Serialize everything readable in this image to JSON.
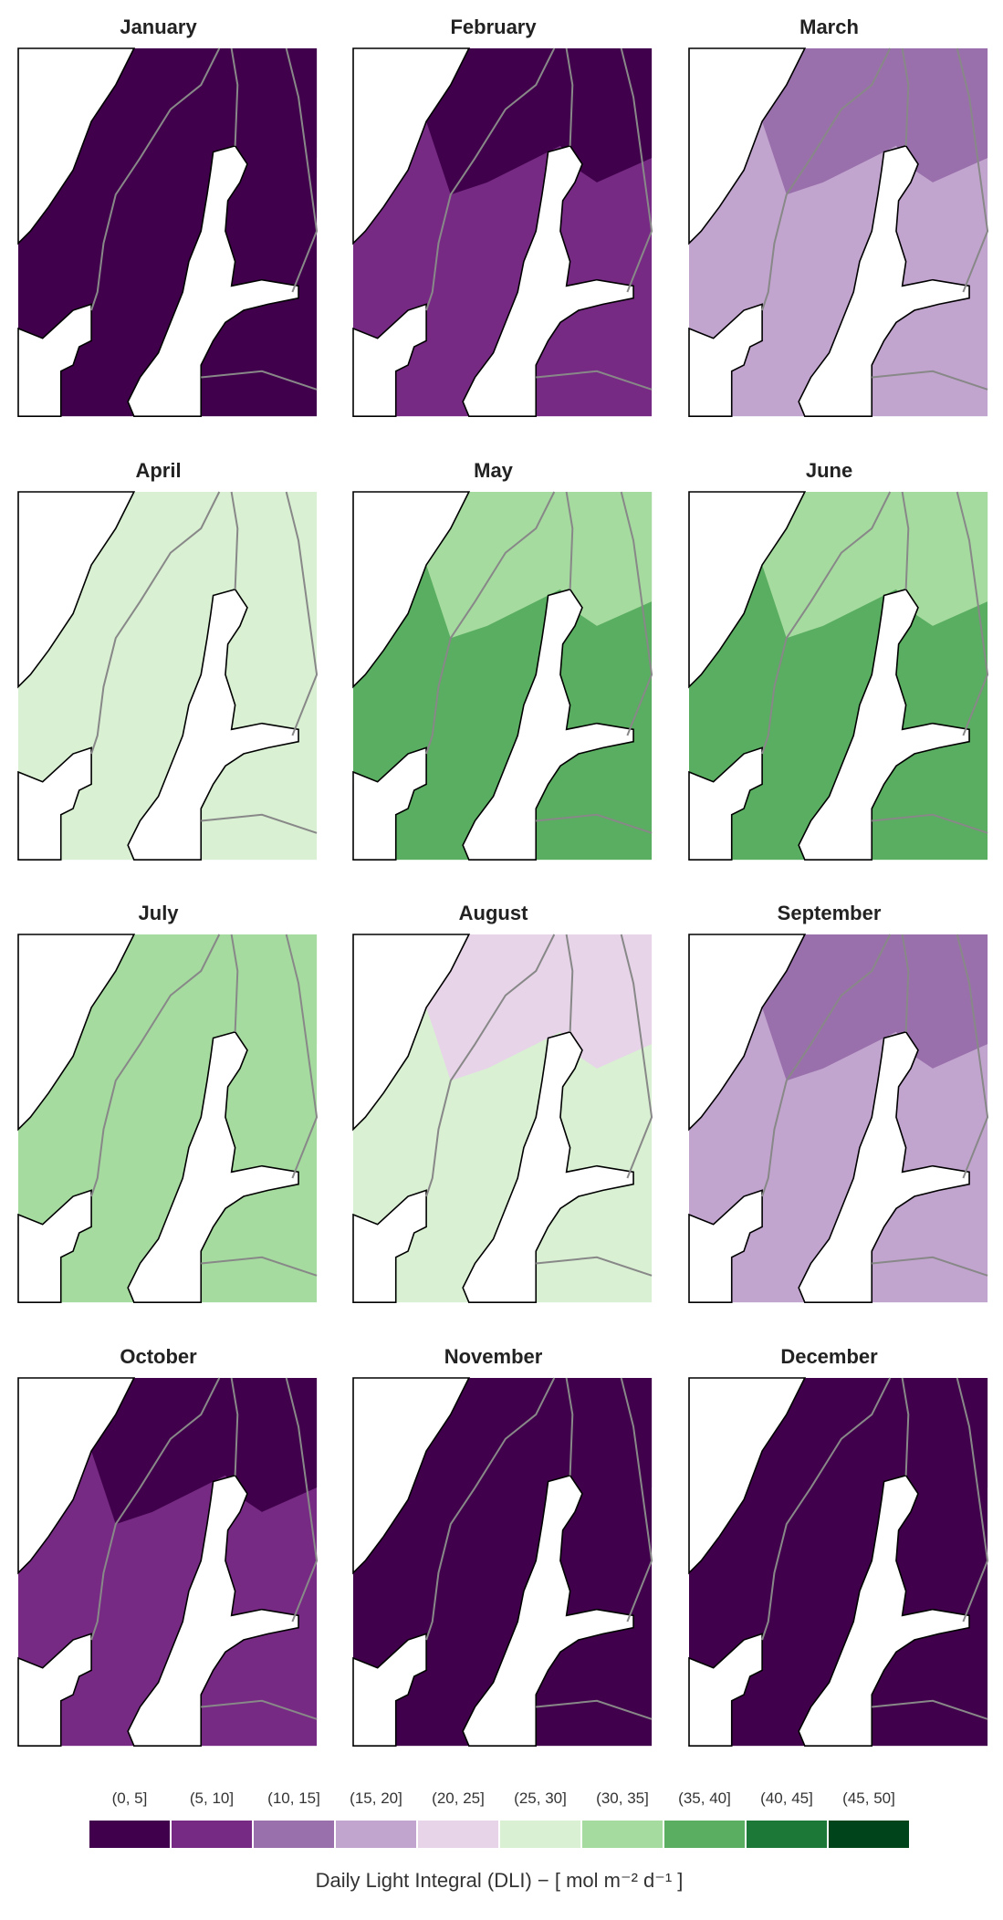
{
  "panels": [
    {
      "title": "January",
      "color": "#40004b",
      "north_color": "#40004b"
    },
    {
      "title": "February",
      "color": "#762a83",
      "north_color": "#40004b"
    },
    {
      "title": "March",
      "color": "#c2a5cf",
      "north_color": "#9970ab"
    },
    {
      "title": "April",
      "color": "#d9f0d3",
      "north_color": "#d9f0d3"
    },
    {
      "title": "May",
      "color": "#5aae61",
      "north_color": "#a6dba0"
    },
    {
      "title": "June",
      "color": "#5aae61",
      "north_color": "#a6dba0"
    },
    {
      "title": "July",
      "color": "#a6dba0",
      "north_color": "#a6dba0"
    },
    {
      "title": "August",
      "color": "#d9f0d3",
      "north_color": "#e7d4e8"
    },
    {
      "title": "September",
      "color": "#c2a5cf",
      "north_color": "#9970ab"
    },
    {
      "title": "October",
      "color": "#762a83",
      "north_color": "#40004b"
    },
    {
      "title": "November",
      "color": "#40004b",
      "north_color": "#40004b"
    },
    {
      "title": "December",
      "color": "#40004b",
      "north_color": "#40004b"
    }
  ],
  "legend": {
    "title": "Daily Light Integral (DLI) − [ mol m⁻² d⁻¹ ]",
    "items": [
      {
        "label": "(0, 5]",
        "color": "#40004b"
      },
      {
        "label": "(5, 10]",
        "color": "#762a83"
      },
      {
        "label": "(10, 15]",
        "color": "#9970ab"
      },
      {
        "label": "(15, 20]",
        "color": "#c2a5cf"
      },
      {
        "label": "(20, 25]",
        "color": "#e7d4e8"
      },
      {
        "label": "(25, 30]",
        "color": "#d9f0d3"
      },
      {
        "label": "(30, 35]",
        "color": "#a6dba0"
      },
      {
        "label": "(35, 40]",
        "color": "#5aae61"
      },
      {
        "label": "(40, 45]",
        "color": "#1b7837"
      },
      {
        "label": "(45, 50]",
        "color": "#00441b"
      }
    ]
  }
}
